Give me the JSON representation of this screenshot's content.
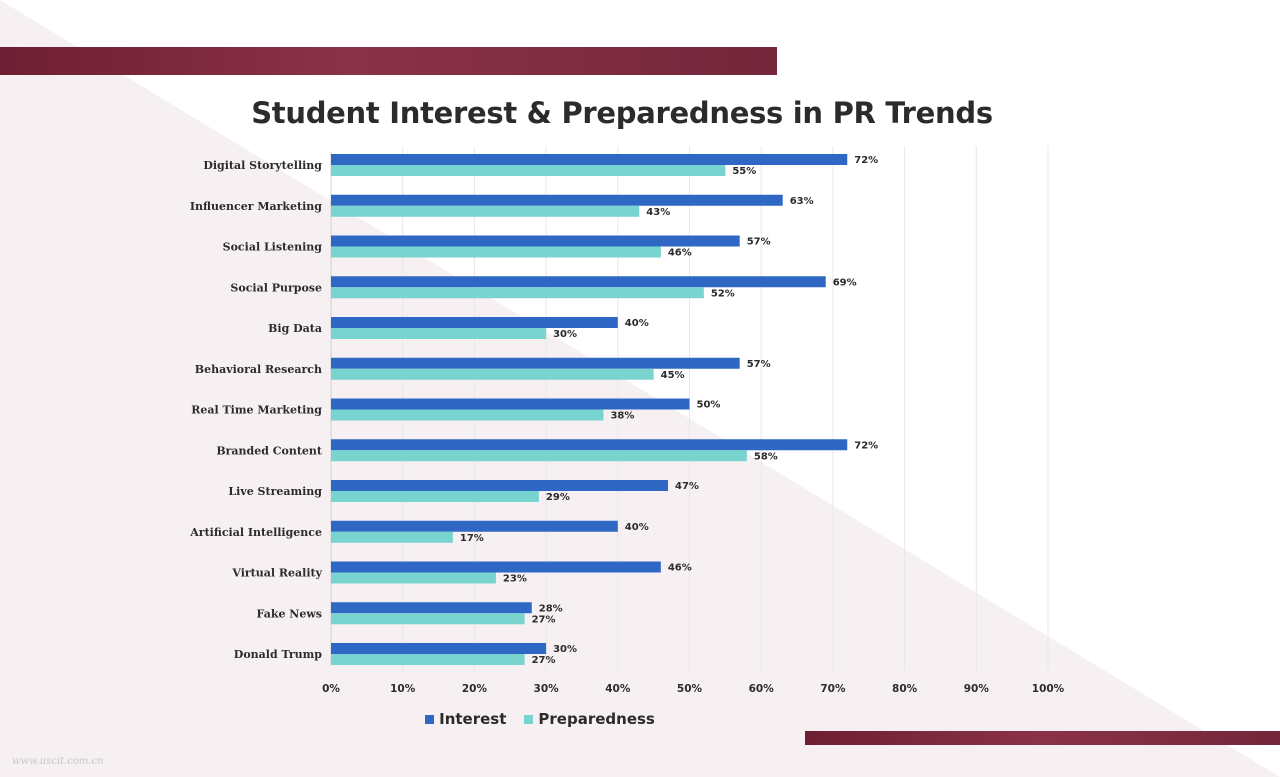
{
  "colors": {
    "interest": "#2f68c4",
    "preparedness": "#79d3cf",
    "band": "#7a2a3f",
    "background_tint": "#f6f0f2",
    "grid": "#e8e8e8"
  },
  "watermark": "www.uscit.com.cn",
  "chart_data": {
    "type": "bar",
    "orientation": "horizontal",
    "title": "Student Interest & Preparedness in PR Trends",
    "categories": [
      "Digital Storytelling",
      "Influencer Marketing",
      "Social Listening",
      "Social Purpose",
      "Big Data",
      "Behavioral Research",
      "Real Time Marketing",
      "Branded Content",
      "Live Streaming",
      "Artificial Intelligence",
      "Virtual Reality",
      "Fake News",
      "Donald Trump"
    ],
    "series": [
      {
        "name": "Interest",
        "values": [
          72,
          63,
          57,
          69,
          40,
          57,
          50,
          72,
          47,
          40,
          46,
          28,
          30
        ],
        "labels": [
          "72%",
          "63%",
          "57%",
          "69%",
          "40%",
          "57%",
          "50%",
          "72%",
          "47%",
          "40%",
          "46%",
          "28%",
          "30%"
        ]
      },
      {
        "name": "Preparedness",
        "values": [
          55,
          43,
          46,
          52,
          30,
          45,
          38,
          58,
          29,
          17,
          23,
          27,
          27
        ],
        "labels": [
          "55%",
          "43%",
          "46%",
          "52%",
          "30%",
          "45%",
          "38%",
          "58%",
          "29%",
          "17%",
          "23%",
          "27%",
          "27%"
        ]
      }
    ],
    "xlim": [
      0,
      100
    ],
    "xticks": [
      "0%",
      "10%",
      "20%",
      "30%",
      "40%",
      "50%",
      "60%",
      "70%",
      "80%",
      "90%",
      "100%"
    ],
    "grid": true,
    "legend_position": "bottom"
  }
}
